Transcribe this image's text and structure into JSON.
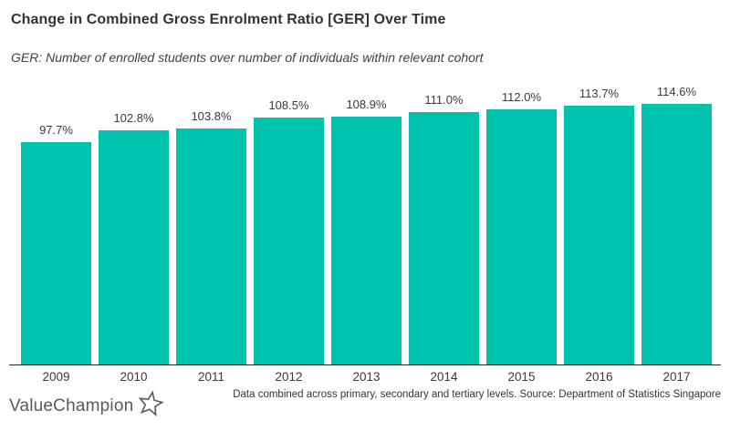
{
  "header": {
    "title": "Change in Combined Gross Enrolment Ratio [GER] Over Time",
    "subtitle": "GER: Number of enrolled students over number of individuals within relevant cohort"
  },
  "chart_data": {
    "type": "bar",
    "title": "Change in Combined Gross Enrolment Ratio [GER] Over Time",
    "subtitle": "GER: Number of enrolled students over number of individuals within relevant cohort",
    "categories": [
      "2009",
      "2010",
      "2011",
      "2012",
      "2013",
      "2014",
      "2015",
      "2016",
      "2017"
    ],
    "values": [
      97.7,
      102.8,
      103.8,
      108.5,
      108.9,
      111.0,
      112.0,
      113.7,
      114.6
    ],
    "value_labels": [
      "97.7%",
      "102.8%",
      "103.8%",
      "108.5%",
      "108.9%",
      "111.0%",
      "112.0%",
      "113.7%",
      "114.6%"
    ],
    "xlabel": "",
    "ylabel": "",
    "ylim": [
      0,
      120
    ],
    "grid": false,
    "legend": false,
    "bar_color": "#00c3ad"
  },
  "footer": {
    "brand": "ValueChampion",
    "note": "Data combined across primary, secondary and tertiary levels. Source: Department of Statistics Singapore"
  },
  "colors": {
    "bar": "#00c3ad",
    "title_text": "#333333",
    "axis": "#2b2b2b",
    "logo": "#595a5c"
  }
}
